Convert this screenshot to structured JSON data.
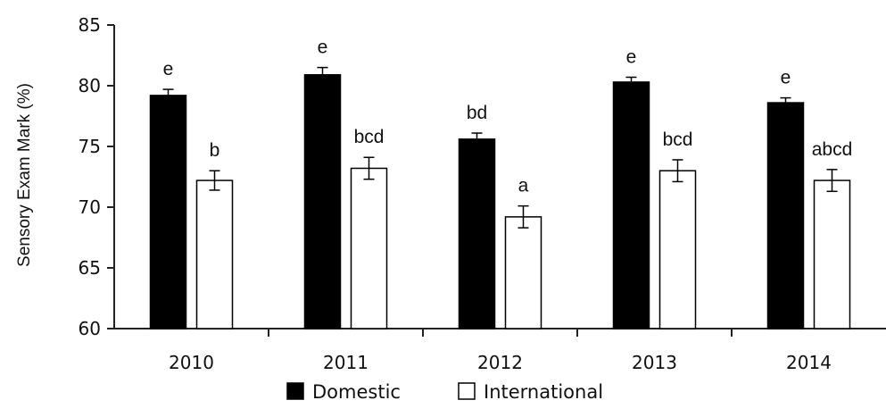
{
  "chart_data": {
    "type": "bar",
    "title": "",
    "xlabel": "",
    "ylabel": "Sensory Exam Mark (%)",
    "ylim": [
      60,
      85
    ],
    "yticks": [
      60,
      65,
      70,
      75,
      80,
      85
    ],
    "categories": [
      "2010",
      "2011",
      "2012",
      "2013",
      "2014"
    ],
    "series": [
      {
        "name": "Domestic",
        "color": "#000000",
        "values": [
          79.2,
          80.9,
          75.6,
          80.3,
          78.6
        ],
        "errors": [
          0.5,
          0.6,
          0.5,
          0.4,
          0.4
        ],
        "labels": [
          "e",
          "e",
          "bd",
          "e",
          "e"
        ]
      },
      {
        "name": "International",
        "color": "#ffffff",
        "values": [
          72.2,
          73.2,
          69.2,
          73.0,
          72.2
        ],
        "errors": [
          0.8,
          0.9,
          0.9,
          0.9,
          0.9
        ],
        "labels": [
          "b",
          "bcd",
          "a",
          "bcd",
          "abcd"
        ]
      }
    ],
    "legend": {
      "position": "bottom",
      "entries": [
        "Domestic",
        "International"
      ]
    },
    "grid": false
  }
}
